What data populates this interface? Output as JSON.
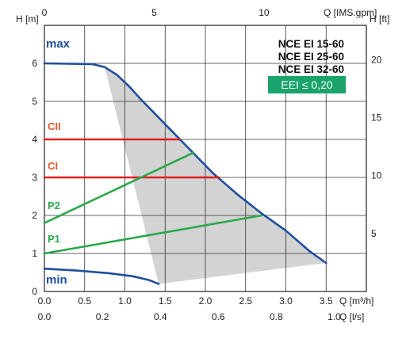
{
  "chart_data": {
    "type": "line",
    "title": "",
    "models": [
      "NCE EI 15-60",
      "NCE EI 25-60",
      "NCE EI 32-60"
    ],
    "eei_label": "EEI ≤ 0,20",
    "axes": {
      "x_bottom": {
        "label": "Q [m³/h]",
        "range": [
          0,
          4.0
        ],
        "ticks": [
          "0.0",
          "0.5",
          "1.0",
          "1.5",
          "2.0",
          "2.5",
          "3.0",
          "3.5"
        ]
      },
      "x_bottom2": {
        "label": "Q [l/s]",
        "ticks": [
          "0.0",
          "0.2",
          "0.4",
          "0.6",
          "0.8",
          "1.0"
        ],
        "values": [
          0,
          0.2,
          0.4,
          0.6,
          0.8,
          1.0
        ]
      },
      "x_top": {
        "label": "Q [IMS.gpm]",
        "ticks": [
          "0",
          "5",
          "10"
        ],
        "values": [
          0,
          5,
          10
        ]
      },
      "y_left": {
        "label": "H [m]",
        "range": [
          0,
          7
        ],
        "ticks": [
          "0",
          "1",
          "2",
          "3",
          "4",
          "5",
          "6"
        ]
      },
      "y_right": {
        "label": "H [ft]",
        "ticks": [
          "5",
          "10",
          "15",
          "20"
        ],
        "values": [
          5,
          10,
          15,
          20
        ]
      }
    },
    "grid": true,
    "series": [
      {
        "name": "max",
        "color": "#1f4e9c",
        "x": [
          0,
          0.6,
          0.75,
          0.9,
          1.05,
          1.2,
          1.5,
          1.8,
          2.1,
          2.4,
          2.7,
          3.0,
          3.3,
          3.5
        ],
        "y": [
          6.0,
          5.98,
          5.9,
          5.7,
          5.4,
          5.05,
          4.4,
          3.75,
          3.1,
          2.55,
          2.05,
          1.6,
          1.05,
          0.75
        ]
      },
      {
        "name": "min",
        "color": "#1f4e9c",
        "x": [
          0,
          0.4,
          0.8,
          1.1,
          1.3,
          1.42
        ],
        "y": [
          0.6,
          0.55,
          0.48,
          0.4,
          0.3,
          0.2
        ]
      },
      {
        "name": "CII",
        "color": "#e02020",
        "x": [
          0,
          1.68
        ],
        "y": [
          4.0,
          4.0
        ]
      },
      {
        "name": "CI",
        "color": "#e02020",
        "x": [
          0,
          2.17
        ],
        "y": [
          3.0,
          3.0
        ]
      },
      {
        "name": "P2",
        "color": "#2aa84a",
        "x": [
          0,
          1.85
        ],
        "y": [
          1.8,
          3.65
        ]
      },
      {
        "name": "P1",
        "color": "#2aa84a",
        "x": [
          0,
          2.7
        ],
        "y": [
          1.0,
          2.0
        ]
      }
    ],
    "shaded_region": {
      "color": "#c4c4c4",
      "x": [
        0.75,
        0.9,
        1.05,
        1.2,
        1.5,
        1.8,
        2.1,
        2.4,
        2.7,
        3.0,
        3.3,
        3.5,
        1.42
      ],
      "y": [
        5.9,
        5.7,
        5.4,
        5.05,
        4.4,
        3.75,
        3.1,
        2.55,
        2.05,
        1.6,
        1.05,
        0.75,
        0.2
      ]
    }
  }
}
